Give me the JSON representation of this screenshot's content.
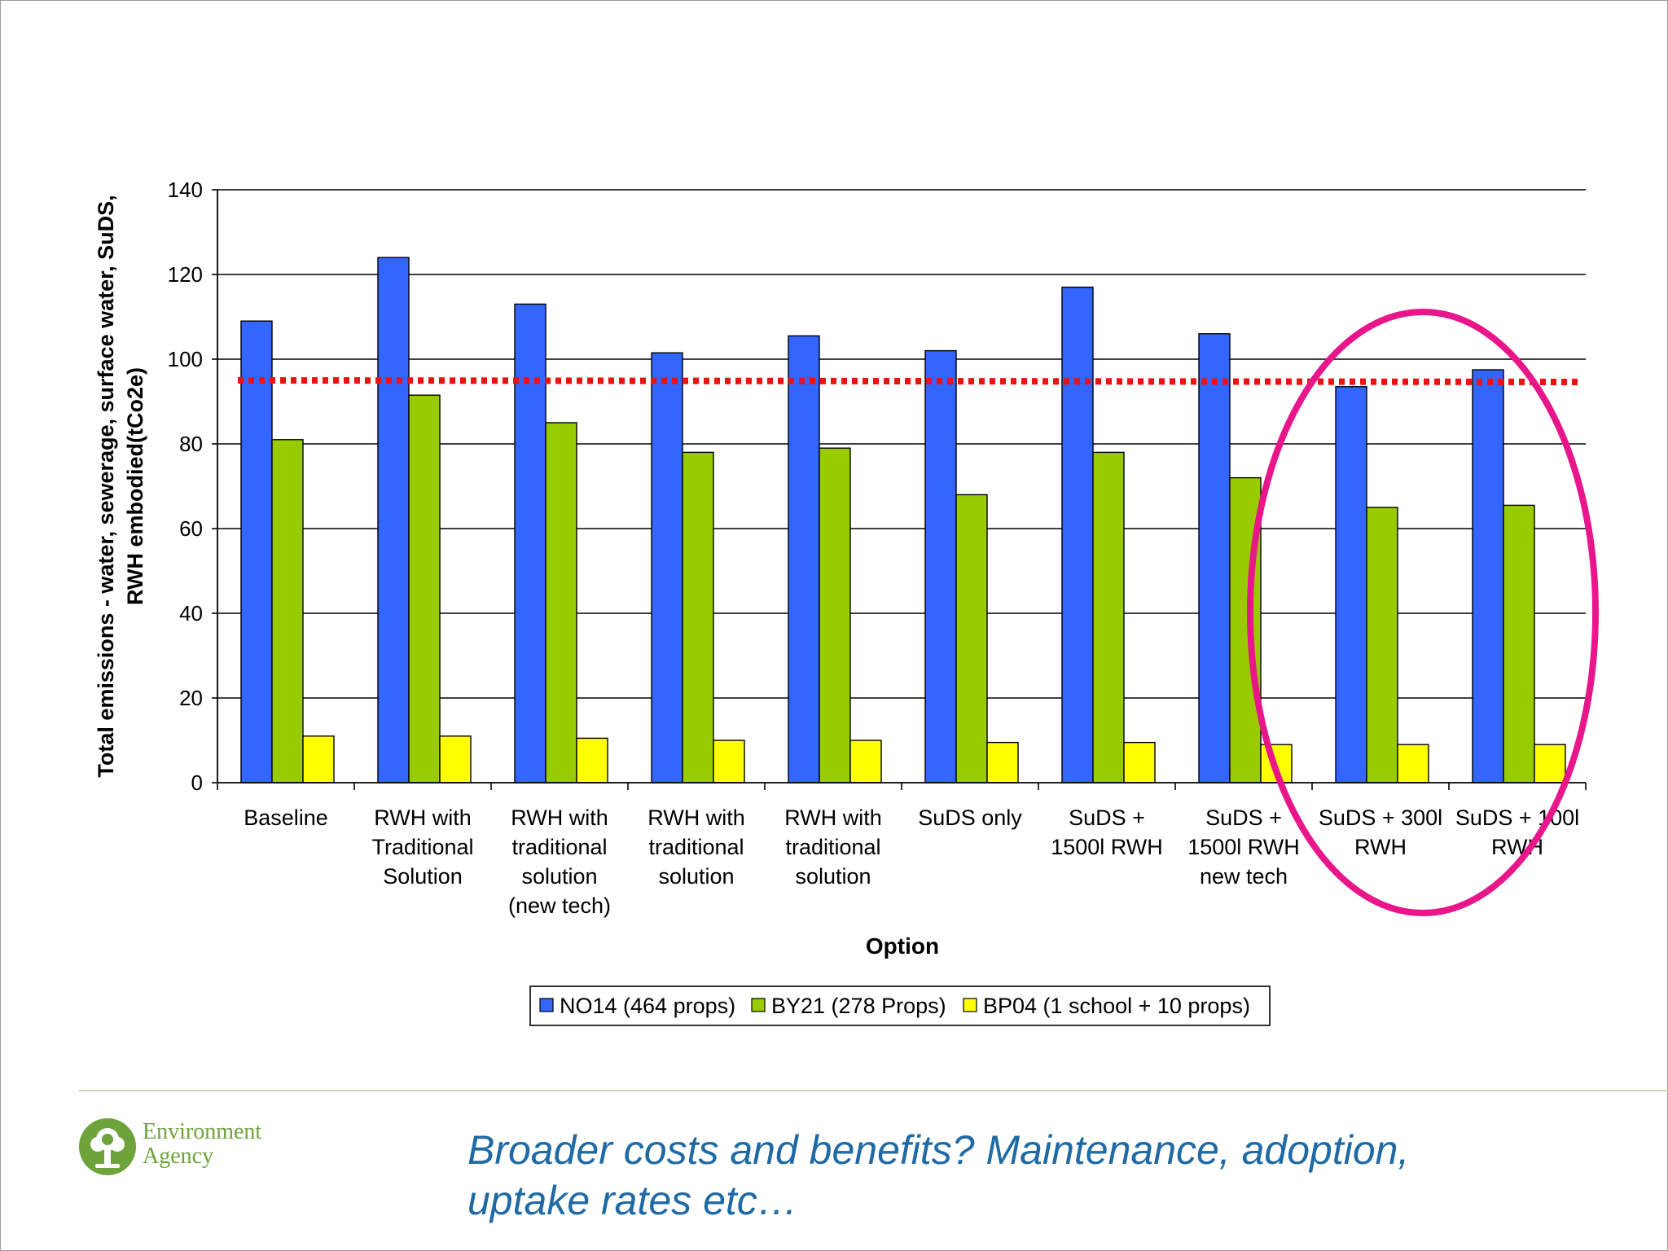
{
  "chart_data": {
    "type": "bar",
    "title": "",
    "xlabel": "Option",
    "ylabel": [
      "Total emissions - water, sewerage, surface water, SuDS,",
      "RWH embodied(tCo2e)"
    ],
    "ylim": [
      0,
      140
    ],
    "yticks": [
      0,
      20,
      40,
      60,
      80,
      100,
      120,
      140
    ],
    "grid": true,
    "legend_position": "bottom",
    "categories": [
      [
        "Baseline"
      ],
      [
        "RWH with",
        "Traditional",
        "Solution"
      ],
      [
        "RWH with",
        "traditional",
        "solution",
        "(new tech)"
      ],
      [
        "RWH with",
        "traditional",
        "solution"
      ],
      [
        "RWH with",
        "traditional",
        "solution"
      ],
      [
        "SuDS only"
      ],
      [
        "SuDS +",
        "1500l RWH"
      ],
      [
        "SuDS +",
        "1500l RWH",
        "new tech"
      ],
      [
        "SuDS + 300l",
        "RWH"
      ],
      [
        "SuDS + 100l",
        "RWH"
      ]
    ],
    "series": [
      {
        "name": "NO14 (464 props)",
        "color": "#3366ff",
        "values": [
          109,
          124,
          113,
          101.5,
          105.5,
          102,
          117,
          106,
          93.5,
          97.5
        ]
      },
      {
        "name": "BY21 (278 Props)",
        "color": "#99cc00",
        "values": [
          81,
          91.5,
          85,
          78,
          79,
          68,
          78,
          72,
          65,
          65.5
        ]
      },
      {
        "name": "BP04 (1 school + 10 props)",
        "color": "#ffff00",
        "values": [
          11,
          11,
          10.5,
          10,
          10,
          9.5,
          9.5,
          9,
          9,
          9
        ]
      }
    ],
    "reference_line": {
      "value": 95,
      "color": "#ee1111",
      "style": "dotted"
    },
    "highlight": {
      "shape": "ellipse",
      "color": "#e8168a",
      "categories": [
        "SuDS + 300l RWH",
        "SuDS + 100l RWH"
      ]
    }
  },
  "footer": {
    "logo_line1": "Environment",
    "logo_line2": "Agency",
    "logo_icon": "tree-icon",
    "caption_line1": "Broader costs and benefits? Maintenance, adoption,",
    "caption_line2": "uptake rates etc…"
  },
  "colors": {
    "caption": "#1f6aa5",
    "logo_green": "#6da33a",
    "footer_rule": "#c9d6ad"
  }
}
